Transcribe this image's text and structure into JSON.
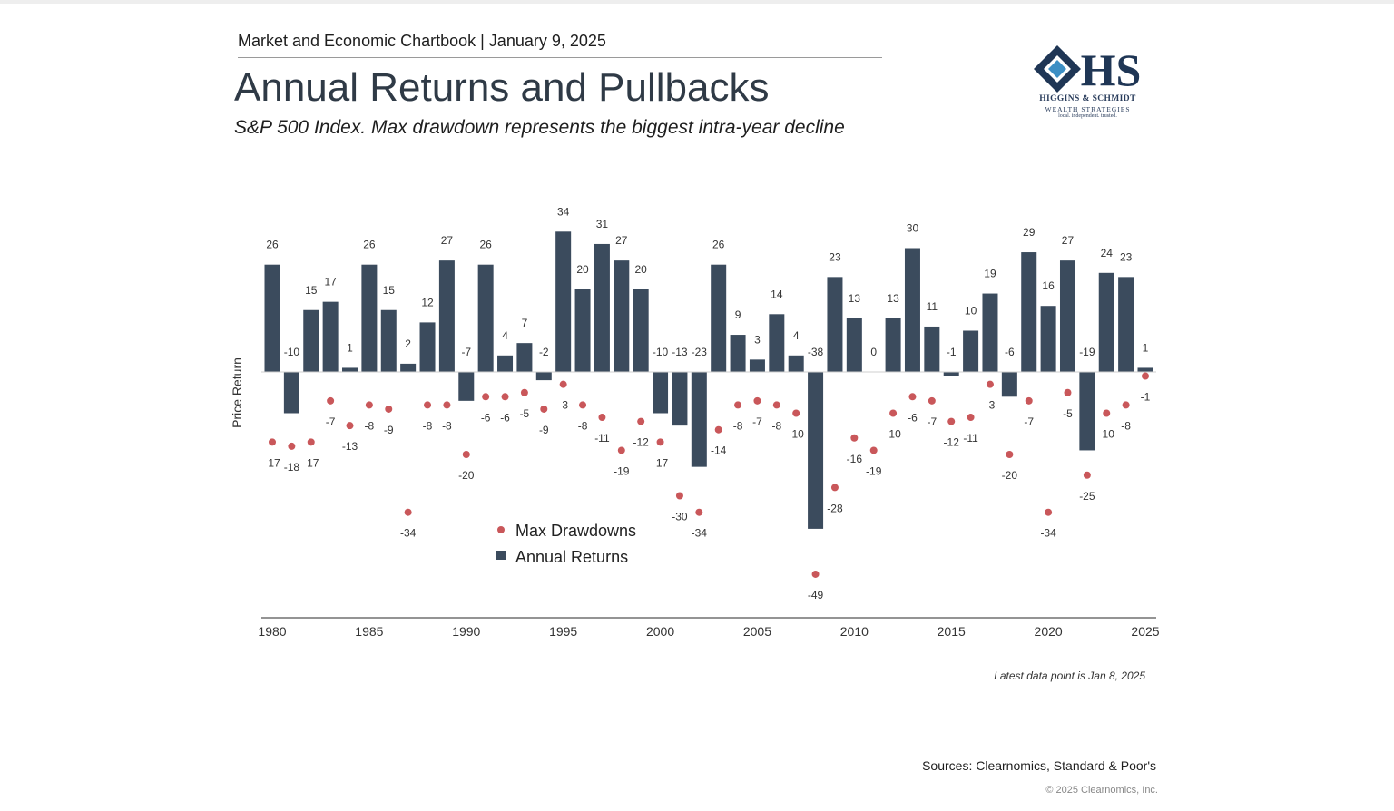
{
  "header": {
    "kicker": "Market and Economic Chartbook | January 9, 2025",
    "title": "Annual Returns and Pullbacks",
    "subtitle": "S&P 500 Index. Max drawdown represents the biggest intra-year decline"
  },
  "logo": {
    "monogram": "HS",
    "firm": "HIGGINS & SCHMIDT",
    "tagline": "WEALTH STRATEGIES",
    "motto": "local. independent. trusted."
  },
  "colors": {
    "bar": "#3b4b5d",
    "dot": "#c9575a",
    "axis": "#555555",
    "text": "#333333",
    "logo_dark": "#1f3655",
    "logo_light": "#3d8fc4"
  },
  "chart_data": {
    "type": "bar",
    "ylabel": "Price Return",
    "xlabel": "",
    "x_ticks": [
      "1980",
      "1985",
      "1990",
      "1995",
      "2000",
      "2005",
      "2010",
      "2015",
      "2020",
      "2025"
    ],
    "categories": [
      1980,
      1981,
      1982,
      1983,
      1984,
      1985,
      1986,
      1987,
      1988,
      1989,
      1990,
      1991,
      1992,
      1993,
      1994,
      1995,
      1996,
      1997,
      1998,
      1999,
      2000,
      2001,
      2002,
      2003,
      2004,
      2005,
      2006,
      2007,
      2008,
      2009,
      2010,
      2011,
      2012,
      2013,
      2014,
      2015,
      2016,
      2017,
      2018,
      2019,
      2020,
      2021,
      2022,
      2023,
      2024,
      2025
    ],
    "series": [
      {
        "name": "Annual Returns",
        "type": "bar",
        "values": [
          26,
          -10,
          15,
          17,
          1,
          26,
          15,
          2,
          12,
          27,
          -7,
          26,
          4,
          7,
          -2,
          34,
          20,
          31,
          27,
          20,
          -10,
          -13,
          -23,
          26,
          9,
          3,
          14,
          4,
          -38,
          23,
          13,
          0,
          13,
          30,
          11,
          -1,
          10,
          19,
          -6,
          29,
          16,
          27,
          -19,
          24,
          23,
          1
        ]
      },
      {
        "name": "Max Drawdowns",
        "type": "scatter",
        "values": [
          -17,
          -18,
          -17,
          -7,
          -13,
          -8,
          -9,
          -34,
          -8,
          -8,
          -20,
          -6,
          -6,
          -5,
          -9,
          -3,
          -8,
          -11,
          -19,
          -12,
          -17,
          -30,
          -34,
          -14,
          -8,
          -7,
          -8,
          -10,
          -49,
          -28,
          -16,
          -19,
          -10,
          -6,
          -7,
          -12,
          -11,
          -3,
          -20,
          -7,
          -34,
          -5,
          -25,
          -10,
          -8,
          -1
        ]
      }
    ],
    "legend_position": "bottom-center",
    "grid": false
  },
  "footer": {
    "note": "Latest data point is Jan 8, 2025",
    "sources": "Sources: Clearnomics, Standard & Poor's",
    "copyright": "© 2025 Clearnomics, Inc."
  }
}
